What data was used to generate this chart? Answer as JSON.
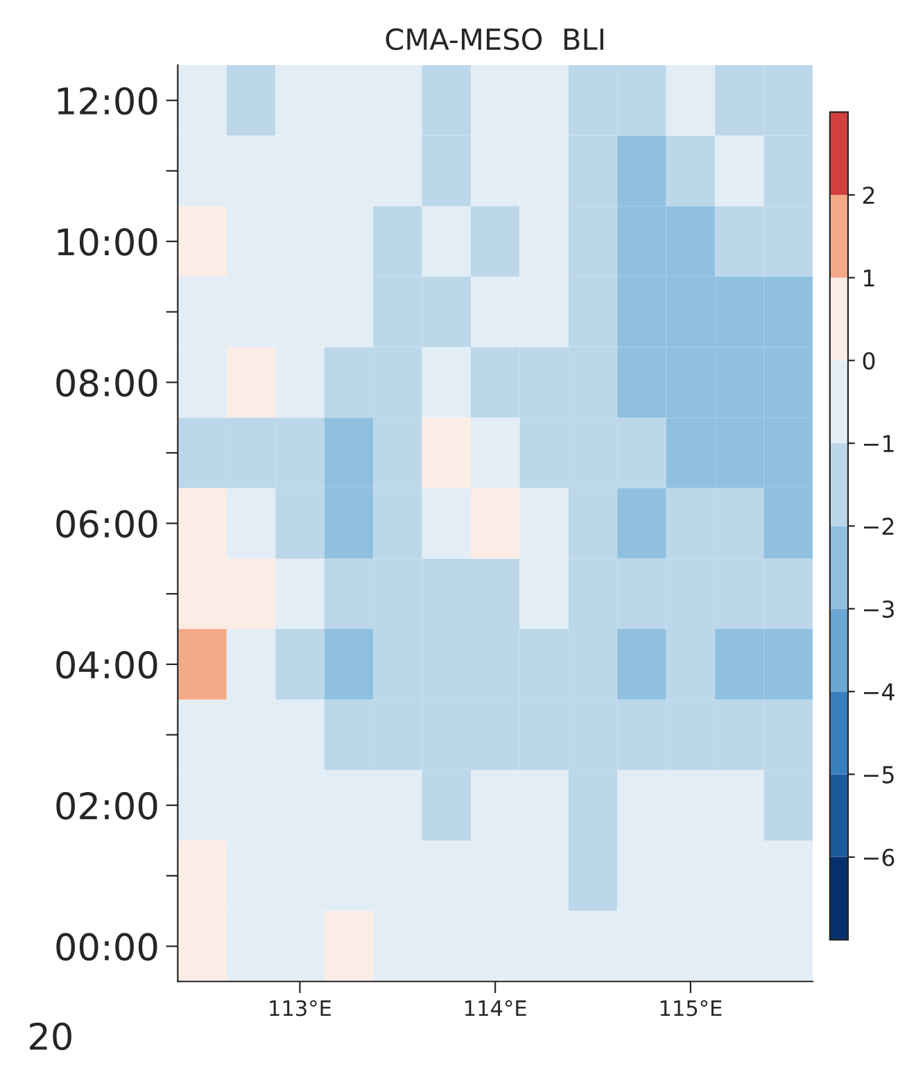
{
  "chart_data": {
    "type": "heatmap",
    "title": "CMA-MESO  BLI",
    "categories": [
      null,
      null,
      "113°E",
      null,
      null,
      null,
      "114°E",
      null,
      null,
      null,
      "115°E",
      null,
      null
    ],
    "y_categories": [
      "12:00",
      null,
      "10:00",
      null,
      "08:00",
      null,
      "06:00",
      null,
      "04:00",
      null,
      "02:00",
      null,
      "00:00"
    ],
    "cells": [
      [
        -0.5,
        -1.5,
        -0.5,
        -0.5,
        -0.5,
        -1.5,
        -0.5,
        -0.5,
        -1.5,
        -1.5,
        -0.5,
        -1.5,
        -1.5
      ],
      [
        -0.5,
        -0.5,
        -0.5,
        -0.5,
        -0.5,
        -1.5,
        -0.5,
        -0.5,
        -1.5,
        -2.5,
        -1.5,
        -0.5,
        -1.5
      ],
      [
        0.5,
        -0.5,
        -0.5,
        -0.5,
        -1.5,
        -0.5,
        -1.5,
        -0.5,
        -1.5,
        -2.5,
        -2.5,
        -1.5,
        -1.5
      ],
      [
        -0.5,
        -0.5,
        -0.5,
        -0.5,
        -1.5,
        -1.5,
        -0.5,
        -0.5,
        -1.5,
        -2.5,
        -2.5,
        -2.5,
        -2.5
      ],
      [
        -0.5,
        0.5,
        -0.5,
        -1.5,
        -1.5,
        -0.5,
        -1.5,
        -1.5,
        -1.5,
        -2.5,
        -2.5,
        -2.5,
        -2.5
      ],
      [
        -1.5,
        -1.5,
        -1.5,
        -2.5,
        -1.5,
        0.5,
        -0.5,
        -1.5,
        -1.5,
        -1.5,
        -2.5,
        -2.5,
        -2.5
      ],
      [
        0.5,
        -0.5,
        -1.5,
        -2.5,
        -1.5,
        -0.5,
        0.5,
        -0.5,
        -1.5,
        -2.5,
        -1.5,
        -1.5,
        -2.5
      ],
      [
        0.5,
        0.5,
        -0.5,
        -1.5,
        -1.5,
        -1.5,
        -1.5,
        -0.5,
        -1.5,
        -1.5,
        -1.5,
        -1.5,
        -1.5
      ],
      [
        1.5,
        -0.5,
        -1.5,
        -2.5,
        -1.5,
        -1.5,
        -1.5,
        -1.5,
        -1.5,
        -2.5,
        -1.5,
        -2.5,
        -2.5
      ],
      [
        -0.5,
        -0.5,
        -0.5,
        -1.5,
        -1.5,
        -1.5,
        -1.5,
        -1.5,
        -1.5,
        -1.5,
        -1.5,
        -1.5,
        -1.5
      ],
      [
        -0.5,
        -0.5,
        -0.5,
        -0.5,
        -0.5,
        -1.5,
        -0.5,
        -0.5,
        -1.5,
        -0.5,
        -0.5,
        -0.5,
        -1.5
      ],
      [
        0.5,
        -0.5,
        -0.5,
        -0.5,
        -0.5,
        -0.5,
        -0.5,
        -0.5,
        -1.5,
        -0.5,
        -0.5,
        -0.5,
        -0.5
      ],
      [
        0.5,
        -0.5,
        -0.5,
        0.5,
        -0.5,
        -0.5,
        -0.5,
        -0.5,
        -0.5,
        -0.5,
        -0.5,
        -0.5,
        -0.5
      ]
    ],
    "clim": [
      -7,
      3
    ],
    "cticks": [
      -6,
      -5,
      -4,
      -3,
      -2,
      -1,
      0,
      1,
      2
    ],
    "colors": [
      "#08306b",
      "#1c5a9c",
      "#3a7fbd",
      "#6aa7d3",
      "#90c0e0",
      "#bcd7ea",
      "#e3edf5",
      "#fbece6",
      "#f4aa88",
      "#d1403f"
    ],
    "annotations": [
      "20"
    ]
  }
}
